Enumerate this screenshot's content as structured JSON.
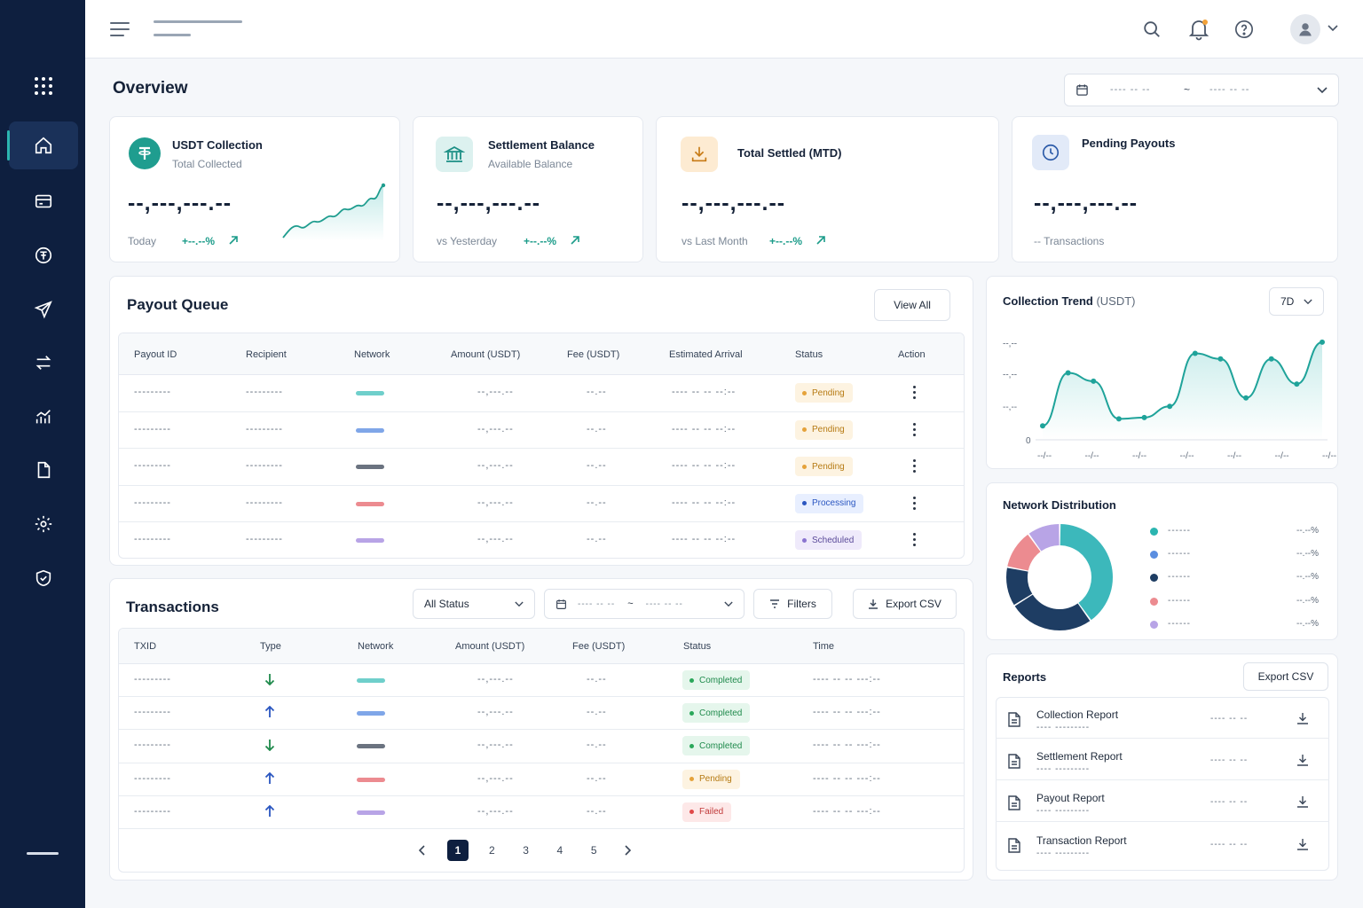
{
  "header": {
    "page_title": "Overview",
    "date_range": {
      "start": "---- -- --",
      "sep": "~",
      "end": "---- -- --"
    }
  },
  "kpis": [
    {
      "title": "USDT Collection",
      "subtitle": "Total Collected",
      "value": "--,---,---.--",
      "foot": "Today",
      "delta": "+--.--%"
    },
    {
      "title": "Settlement Balance",
      "subtitle": "Available Balance",
      "value": "--,---,---.--",
      "foot": "vs Yesterday",
      "delta": "+--.--%"
    },
    {
      "title": "Total Settled (MTD)",
      "value": "--,---,---.--",
      "foot": "vs Last Month",
      "delta": "+--.--%"
    },
    {
      "title": "Pending Payouts",
      "value": "--,---,---.--",
      "foot": "-- Transactions"
    }
  ],
  "payout_queue": {
    "title": "Payout Queue",
    "view_all": "View All",
    "columns": [
      "Payout ID",
      "Recipient",
      "Network",
      "Amount (USDT)",
      "Fee (USDT)",
      "Estimated Arrival",
      "Status",
      "Action"
    ],
    "rows": [
      {
        "id": "---------",
        "recipient": "---------",
        "network_color": "#6fcfcb",
        "amount": "--,---.--",
        "fee": "--.--",
        "eta": "---- -- -- --:--",
        "status": "Pending"
      },
      {
        "id": "---------",
        "recipient": "---------",
        "network_color": "#7fa6e8",
        "amount": "--,---.--",
        "fee": "--.--",
        "eta": "---- -- -- --:--",
        "status": "Pending"
      },
      {
        "id": "---------",
        "recipient": "---------",
        "network_color": "#6b7380",
        "amount": "--,---.--",
        "fee": "--.--",
        "eta": "---- -- -- --:--",
        "status": "Pending"
      },
      {
        "id": "---------",
        "recipient": "---------",
        "network_color": "#ec8b90",
        "amount": "--,---.--",
        "fee": "--.--",
        "eta": "---- -- -- --:--",
        "status": "Processing"
      },
      {
        "id": "---------",
        "recipient": "---------",
        "network_color": "#b8a4e6",
        "amount": "--,---.--",
        "fee": "--.--",
        "eta": "---- -- -- --:--",
        "status": "Scheduled"
      }
    ]
  },
  "transactions": {
    "title": "Transactions",
    "status_filter": "All Status",
    "date_range": {
      "start": "---- -- --",
      "sep": "~",
      "end": "---- -- --"
    },
    "filters_label": "Filters",
    "export_label": "Export CSV",
    "columns": [
      "TXID",
      "Type",
      "Network",
      "Amount (USDT)",
      "Fee (USDT)",
      "Status",
      "Time"
    ],
    "rows": [
      {
        "txid": "---------",
        "type": "in",
        "network_color": "#6fcfcb",
        "amount": "--,---.--",
        "fee": "--.--",
        "status": "Completed",
        "time": "---- -- -- ---:--"
      },
      {
        "txid": "---------",
        "type": "out",
        "network_color": "#7fa6e8",
        "amount": "--,---.--",
        "fee": "--.--",
        "status": "Completed",
        "time": "---- -- -- ---:--"
      },
      {
        "txid": "---------",
        "type": "in",
        "network_color": "#6b7380",
        "amount": "--,---.--",
        "fee": "--.--",
        "status": "Completed",
        "time": "---- -- -- ---:--"
      },
      {
        "txid": "---------",
        "type": "out",
        "network_color": "#ec8b90",
        "amount": "--,---.--",
        "fee": "--.--",
        "status": "Pending",
        "time": "---- -- -- ---:--"
      },
      {
        "txid": "---------",
        "type": "out",
        "network_color": "#b8a4e6",
        "amount": "--,---.--",
        "fee": "--.--",
        "status": "Failed",
        "time": "---- -- -- ---:--"
      }
    ],
    "pages": [
      "1",
      "2",
      "3",
      "4",
      "5"
    ],
    "current_page": "1"
  },
  "collection_trend": {
    "title": "Collection Trend",
    "title_unit": "(USDT)",
    "range": "7D",
    "chart_data": {
      "type": "area",
      "yticks": [
        "--,--",
        "--,--",
        "--,--",
        "0"
      ],
      "xticks": [
        "--/--",
        "--/--",
        "--/--",
        "--/--",
        "--/--",
        "--/--",
        "--/--"
      ],
      "values": [
        10,
        48,
        42,
        15,
        16,
        24,
        62,
        58,
        30,
        58,
        40,
        70
      ],
      "ylim": [
        0,
        75
      ]
    }
  },
  "network_distribution": {
    "title": "Network Distribution",
    "chart_data": {
      "type": "pie",
      "values": [
        40,
        26,
        12,
        12,
        10
      ],
      "colors": [
        "#3cb8bb",
        "#1e3d63",
        "#1e3d63",
        "#ec8b90",
        "#b8a4e6"
      ]
    },
    "legend": [
      {
        "color": "#2bb5b0",
        "label": "------",
        "pct": "--.--%"
      },
      {
        "color": "#5b8ee0",
        "label": "------",
        "pct": "--.--%"
      },
      {
        "color": "#1e3d63",
        "label": "------",
        "pct": "--.--%"
      },
      {
        "color": "#ec8b90",
        "label": "------",
        "pct": "--.--%"
      },
      {
        "color": "#b8a4e6",
        "label": "------",
        "pct": "--.--%"
      }
    ]
  },
  "reports": {
    "title": "Reports",
    "export_label": "Export CSV",
    "items": [
      {
        "name": "Collection Report",
        "sub": "---- ---------",
        "date": "---- -- --"
      },
      {
        "name": "Settlement Report",
        "sub": "---- ---------",
        "date": "---- -- --"
      },
      {
        "name": "Payout Report",
        "sub": "---- ---------",
        "date": "---- -- --"
      },
      {
        "name": "Transaction Report",
        "sub": "---- ---------",
        "date": "---- -- --"
      }
    ]
  },
  "status_colors": {
    "Pending": {
      "bg": "#fdf3e1",
      "fg": "#b67a12",
      "dot": "#e5a23a"
    },
    "Processing": {
      "bg": "#e8efff",
      "fg": "#2a56c0",
      "dot": "#2a56c0"
    },
    "Scheduled": {
      "bg": "#efeafb",
      "fg": "#5b4b9a",
      "dot": "#8a74d0"
    },
    "Completed": {
      "bg": "#e5f6ec",
      "fg": "#1f8a4c",
      "dot": "#2aa75a"
    },
    "Failed": {
      "bg": "#fde8e8",
      "fg": "#c13b3b",
      "dot": "#e04848"
    }
  }
}
